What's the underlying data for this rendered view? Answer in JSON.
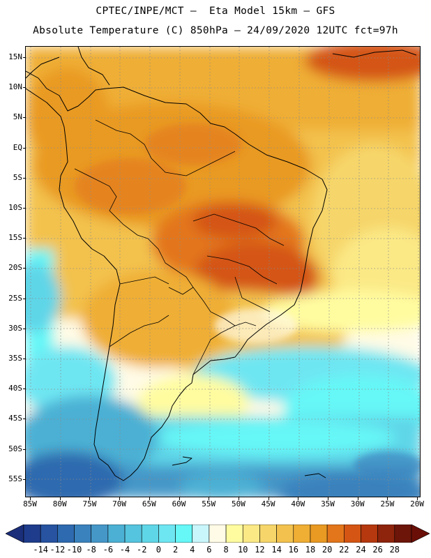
{
  "title_line1": "CPTEC/INPE/MCT –  Eta Model 15km – GFS",
  "title_line2": "Absolute Temperature (C) 850hPa – 24/09/2020 12UTC fct=97h",
  "map": {
    "lat_labels": [
      "15N",
      "10N",
      "5N",
      "EQ",
      "5S",
      "10S",
      "15S",
      "20S",
      "25S",
      "30S",
      "35S",
      "40S",
      "45S",
      "50S",
      "55S"
    ],
    "lon_labels": [
      "85W",
      "80W",
      "75W",
      "70W",
      "65W",
      "60W",
      "55W",
      "50W",
      "45W",
      "40W",
      "35W",
      "30W",
      "25W",
      "20W"
    ],
    "region": "South America",
    "field": "Absolute Temperature (C) 850hPa"
  },
  "colorbar": {
    "labels": [
      "-14",
      "-12",
      "-10",
      "-8",
      "-6",
      "-4",
      "-2",
      "0",
      "2",
      "4",
      "6",
      "8",
      "10",
      "12",
      "14",
      "16",
      "18",
      "20",
      "22",
      "24",
      "26",
      "28"
    ],
    "colors": [
      "#1f3c8c",
      "#2753a0",
      "#2e6aaf",
      "#3a82bd",
      "#4597c8",
      "#4bb0d4",
      "#55c4de",
      "#5fd6e8",
      "#6ee6f2",
      "#66f7f7",
      "#c9f6fb",
      "#fffbe6",
      "#fffca0",
      "#fbe986",
      "#f6d66a",
      "#f3c24e",
      "#efae34",
      "#e99a22",
      "#e3761b",
      "#d45514",
      "#b5380e",
      "#8e240c",
      "#6d1509"
    ],
    "under_color": "#1b2e7a",
    "over_color": "#6a0f07"
  }
}
